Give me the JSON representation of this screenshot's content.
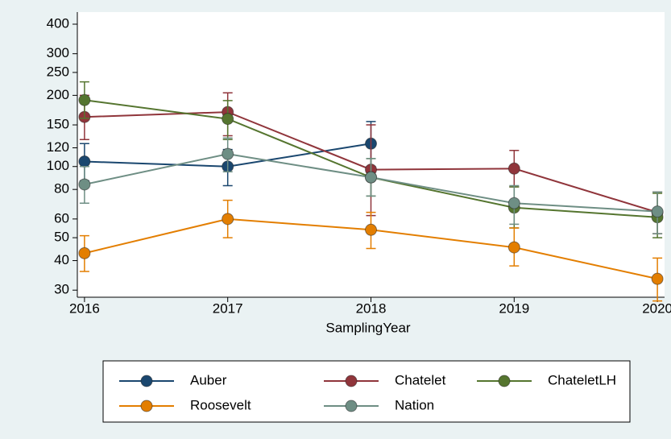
{
  "chart_data": {
    "type": "line",
    "x_label": "SamplingYear",
    "x": [
      2016,
      2017,
      2018,
      2019,
      2020
    ],
    "xlim": [
      2015.95,
      2020.05
    ],
    "xticks": [
      2016,
      2017,
      2018,
      2019,
      2020
    ],
    "ylim": [
      28,
      450
    ],
    "yticks": [
      30,
      40,
      50,
      60,
      80,
      100,
      120,
      150,
      200,
      250,
      300,
      400
    ],
    "y_scale": "log",
    "grid": false,
    "legend_position": "bottom",
    "series": [
      {
        "name": "Auber",
        "color": "#1a476f",
        "values": [
          105,
          100,
          125,
          null,
          null
        ],
        "ci_low": [
          87,
          83,
          100,
          null,
          null
        ],
        "ci_high": [
          125,
          118,
          155,
          null,
          null
        ]
      },
      {
        "name": "Chatelet",
        "color": "#90353b",
        "values": [
          162,
          170,
          97,
          98,
          64
        ],
        "ci_low": [
          130,
          135,
          62,
          82,
          52
        ],
        "ci_high": [
          200,
          205,
          150,
          117,
          78
        ]
      },
      {
        "name": "ChateletLH",
        "color": "#55752f",
        "values": [
          191,
          159,
          90,
          67,
          61
        ],
        "ci_low": [
          160,
          130,
          75,
          55,
          50
        ],
        "ci_high": [
          228,
          190,
          108,
          82,
          77
        ]
      },
      {
        "name": "Roosevelt",
        "color": "#e37e00",
        "values": [
          43,
          60,
          54,
          45.5,
          33.5
        ],
        "ci_low": [
          36,
          50,
          45,
          38,
          27
        ],
        "ci_high": [
          51,
          72,
          64,
          55,
          41
        ]
      },
      {
        "name": "Nation",
        "color": "#6e8e84",
        "values": [
          84,
          113,
          90,
          70,
          64.5
        ],
        "ci_low": [
          70,
          95,
          75,
          57,
          52
        ],
        "ci_high": [
          100,
          132,
          108,
          83,
          78
        ]
      }
    ]
  }
}
